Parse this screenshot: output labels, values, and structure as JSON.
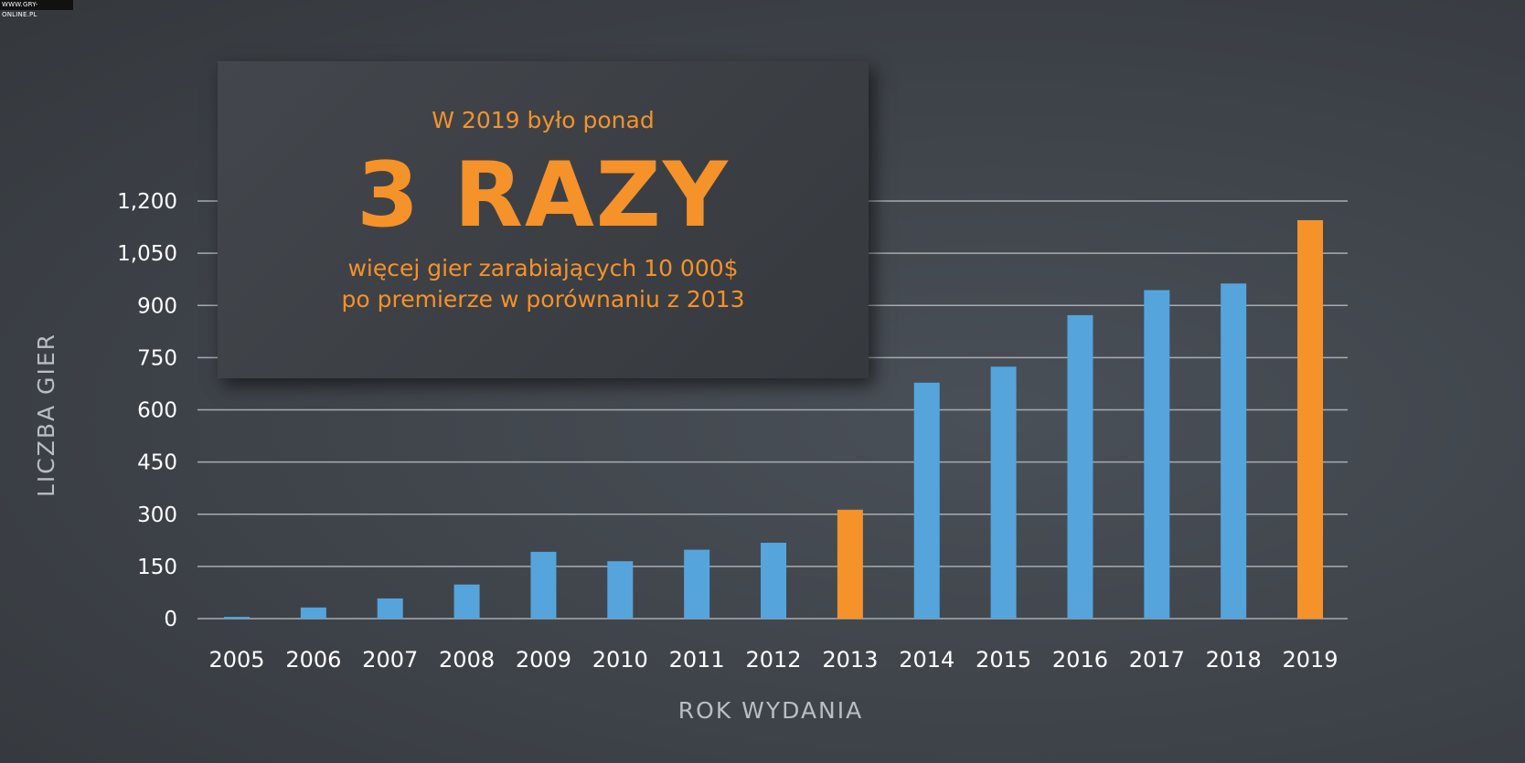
{
  "watermark": "WWW.GRY-ONLINE.PL",
  "callout": {
    "pre": "W 2019 było ponad",
    "big": "3 RAZY",
    "sub_line1": "więcej gier zarabiających 10  000$",
    "sub_line2": "po premierze w porównaniu z 2013"
  },
  "colors": {
    "blue": "#56a4dc",
    "orange": "#f5922a",
    "grid": "#a7acb2"
  },
  "chart_data": {
    "type": "bar",
    "xlabel": "ROK WYDANIA",
    "ylabel": "LICZBA GIER",
    "ylim": [
      0,
      1200
    ],
    "yticks": [
      0,
      150,
      300,
      450,
      600,
      750,
      900,
      1050,
      1200
    ],
    "ytick_labels": [
      "0",
      "150",
      "300",
      "450",
      "600",
      "750",
      "900",
      "1,050",
      "1,200"
    ],
    "categories": [
      "2005",
      "2006",
      "2007",
      "2008",
      "2009",
      "2010",
      "2011",
      "2012",
      "2013",
      "2014",
      "2015",
      "2016",
      "2017",
      "2018",
      "2019"
    ],
    "values": [
      5,
      32,
      58,
      98,
      192,
      165,
      198,
      218,
      313,
      678,
      724,
      872,
      944,
      963,
      1145
    ],
    "highlighted": [
      "2013",
      "2019"
    ],
    "grid": true
  }
}
